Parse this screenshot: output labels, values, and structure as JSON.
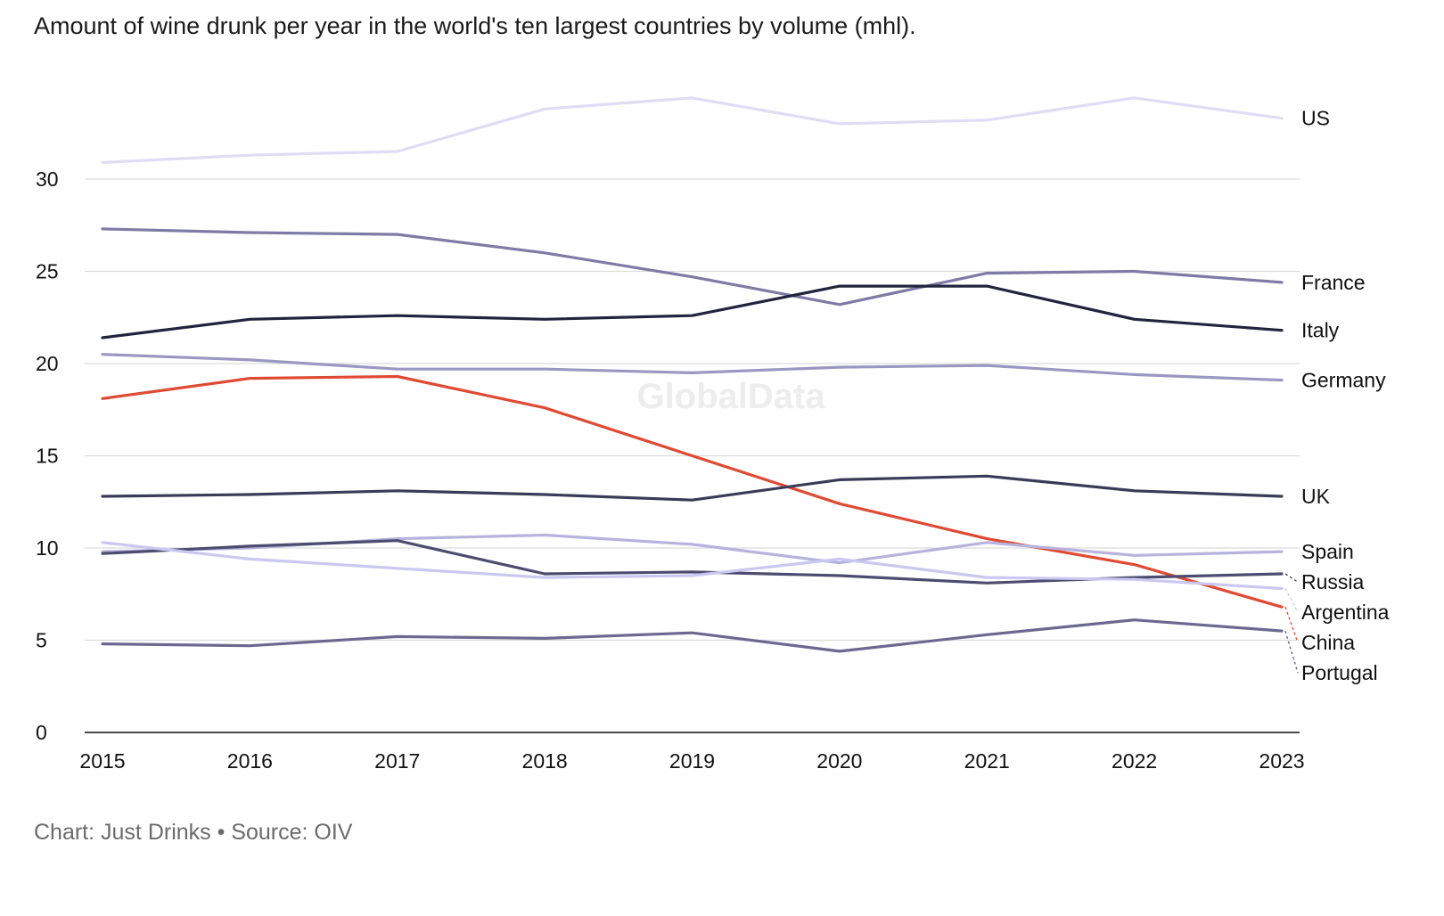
{
  "title": "Amount of wine drunk per year in the world's ten largest countries by volume (mhl).",
  "footer": "Chart: Just Drinks • Source: OIV",
  "watermark": "GlobalData",
  "chart_data": {
    "type": "line",
    "title": "Amount of wine drunk per year in the world's ten largest countries by volume (mhl).",
    "x": [
      2015,
      2016,
      2017,
      2018,
      2019,
      2020,
      2021,
      2022,
      2023
    ],
    "ylim": [
      0,
      34
    ],
    "yticks": [
      0,
      5,
      10,
      15,
      20,
      25,
      30
    ],
    "grid": true,
    "legend": "direct labels at right end",
    "series": [
      {
        "name": "US",
        "color": "#e0dcf4",
        "values": [
          30.9,
          31.3,
          31.5,
          33.8,
          34.4,
          33.0,
          33.2,
          34.4,
          33.3
        ]
      },
      {
        "name": "France",
        "color": "#7f7aa6",
        "values": [
          27.3,
          27.1,
          27.0,
          26.0,
          24.7,
          23.2,
          24.9,
          25.0,
          24.4
        ]
      },
      {
        "name": "Italy",
        "color": "#24233f",
        "values": [
          21.4,
          22.4,
          22.6,
          22.4,
          22.6,
          24.2,
          24.2,
          22.4,
          21.8
        ]
      },
      {
        "name": "Germany",
        "color": "#9b97c2",
        "values": [
          20.5,
          20.2,
          19.7,
          19.7,
          19.5,
          19.8,
          19.9,
          19.4,
          19.1
        ]
      },
      {
        "name": "China",
        "color": "#e04a33",
        "values": [
          18.1,
          19.2,
          19.3,
          17.6,
          15.0,
          12.4,
          10.5,
          9.1,
          6.8
        ]
      },
      {
        "name": "UK",
        "color": "#3b3a58",
        "values": [
          12.8,
          12.9,
          13.1,
          12.9,
          12.6,
          13.7,
          13.9,
          13.1,
          12.8
        ]
      },
      {
        "name": "Spain",
        "color": "#b7b2de",
        "values": [
          9.8,
          10.0,
          10.5,
          10.7,
          10.2,
          9.2,
          10.3,
          9.6,
          9.8
        ]
      },
      {
        "name": "Russia",
        "color": "#4e4b70",
        "values": [
          9.7,
          10.1,
          10.4,
          8.6,
          8.7,
          8.5,
          8.1,
          8.4,
          8.6
        ]
      },
      {
        "name": "Argentina",
        "color": "#cbc7f0",
        "values": [
          10.3,
          9.4,
          8.9,
          8.4,
          8.5,
          9.4,
          8.4,
          8.3,
          7.8
        ]
      },
      {
        "name": "Portugal",
        "color": "#6d6891",
        "values": [
          4.8,
          4.7,
          5.2,
          5.1,
          5.4,
          4.4,
          5.3,
          6.1,
          5.5
        ]
      }
    ]
  }
}
